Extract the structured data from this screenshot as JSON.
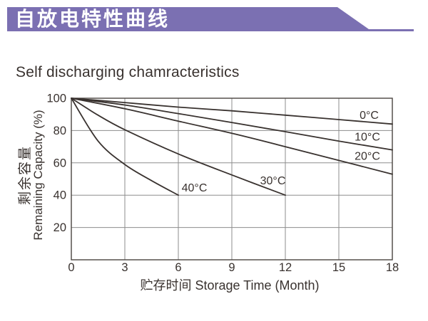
{
  "banner": {
    "title": "自放电特性曲线"
  },
  "chart_data": {
    "type": "line",
    "title": "Self discharging chamracteristics",
    "xlabel": "贮存时间 Storage Time (Month)",
    "ylabel": [
      "剩余容量",
      "Remaining Capacity (%)"
    ],
    "xlim": [
      0,
      18
    ],
    "ylim": [
      0,
      100
    ],
    "x_ticks": [
      0,
      3,
      6,
      9,
      12,
      15,
      18
    ],
    "y_ticks": [
      20,
      40,
      60,
      80,
      100
    ],
    "grid": true,
    "legend_position": "inline-curve-labels",
    "series": [
      {
        "name": "0°C",
        "label_pos": {
          "x": 16.7,
          "y": 89.5
        },
        "points": [
          [
            0,
            100
          ],
          [
            3,
            97.3
          ],
          [
            6,
            94.5
          ],
          [
            9,
            92.2
          ],
          [
            12,
            89.5
          ],
          [
            15,
            86.8
          ],
          [
            18,
            84
          ]
        ]
      },
      {
        "name": "10°C",
        "label_pos": {
          "x": 16.6,
          "y": 76
        },
        "points": [
          [
            0,
            100
          ],
          [
            3,
            95.8
          ],
          [
            6,
            90.5
          ],
          [
            9,
            85
          ],
          [
            12,
            79.3
          ],
          [
            15,
            73.5
          ],
          [
            18,
            68
          ]
        ]
      },
      {
        "name": "20°C",
        "label_pos": {
          "x": 16.6,
          "y": 64
        },
        "points": [
          [
            0,
            100
          ],
          [
            3,
            93.5
          ],
          [
            6,
            85.8
          ],
          [
            9,
            78.3
          ],
          [
            12,
            70
          ],
          [
            15,
            61.5
          ],
          [
            18,
            53
          ]
        ]
      },
      {
        "name": "30°C",
        "label_pos": {
          "x": 11.3,
          "y": 49
        },
        "points": [
          [
            0,
            100
          ],
          [
            1.5,
            89.5
          ],
          [
            3,
            80.5
          ],
          [
            6,
            65.5
          ],
          [
            9,
            52.5
          ],
          [
            12,
            40
          ]
        ]
      },
      {
        "name": "40°C",
        "label_pos": {
          "x": 6.9,
          "y": 44.5
        },
        "points": [
          [
            0,
            100
          ],
          [
            1.5,
            73.5
          ],
          [
            3,
            59
          ],
          [
            4.5,
            49
          ],
          [
            6,
            40
          ]
        ]
      }
    ],
    "colors": {
      "banner": "#7b70b2",
      "curve": "#39322f",
      "grid": "#8d8d8d",
      "axis_border": "#4a4440",
      "text": "#39322f"
    }
  }
}
